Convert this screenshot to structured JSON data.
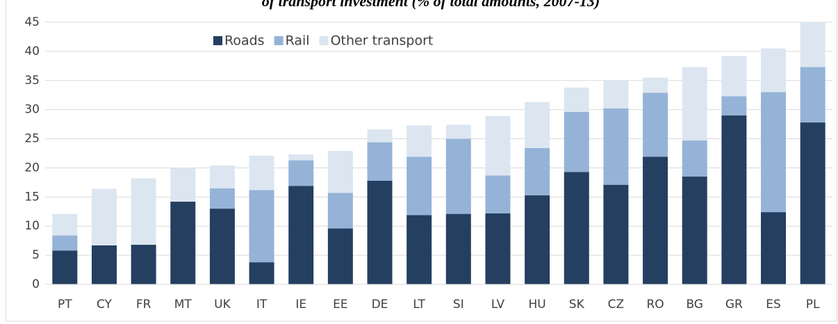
{
  "chart_data": {
    "type": "stacked_bar",
    "title": "of transport investment (% of total amounts, 2007-13)",
    "categories": [
      "PT",
      "CY",
      "FR",
      "MT",
      "UK",
      "IT",
      "IE",
      "EE",
      "DE",
      "LT",
      "SI",
      "LV",
      "HU",
      "SK",
      "CZ",
      "RO",
      "BG",
      "GR",
      "ES",
      "PL"
    ],
    "series": [
      {
        "name": "Roads",
        "color": "#243f60",
        "values": [
          5.8,
          6.7,
          6.8,
          14.2,
          13.0,
          3.8,
          16.9,
          9.6,
          17.8,
          11.9,
          12.1,
          12.2,
          15.3,
          19.3,
          17.1,
          21.9,
          18.5,
          29.0,
          12.4,
          27.8
        ]
      },
      {
        "name": "Rail",
        "color": "#95b3d7",
        "values": [
          2.6,
          0,
          0,
          0,
          3.5,
          12.4,
          4.4,
          6.1,
          6.6,
          10.0,
          12.9,
          6.5,
          8.1,
          10.3,
          13.1,
          11.0,
          6.2,
          3.3,
          20.6,
          9.5
        ]
      },
      {
        "name": "Other transport",
        "color": "#dce6f1",
        "values": [
          3.7,
          9.7,
          11.4,
          5.8,
          3.9,
          5.9,
          1.0,
          7.2,
          2.2,
          5.4,
          2.4,
          10.2,
          7.9,
          4.2,
          4.9,
          2.6,
          12.6,
          6.9,
          7.5,
          7.7
        ]
      }
    ],
    "ylim": [
      0,
      45
    ],
    "yticks": [
      0,
      5,
      10,
      15,
      20,
      25,
      30,
      35,
      40,
      45
    ],
    "grid": true
  }
}
